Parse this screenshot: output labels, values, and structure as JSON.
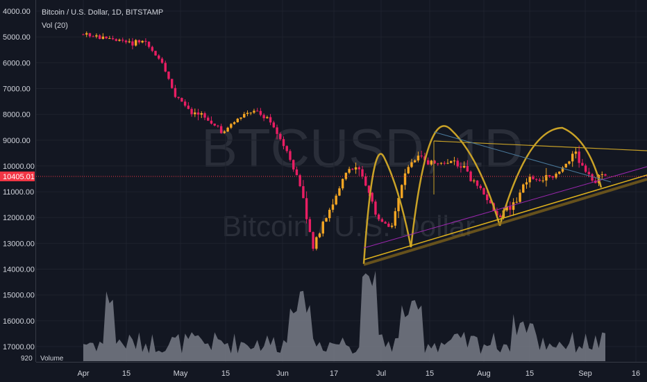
{
  "header": {
    "symbol_line": "Bitcoin / U.S. Dollar, 1D, BITSTAMP",
    "volume_line": "Vol (20)"
  },
  "watermark": {
    "ticker": "BTCUSD, 1D",
    "name": "Bitcoin / U.S. Dollar"
  },
  "price_badge": {
    "value": "10405.01",
    "color": "#f23645"
  },
  "volume_badge": {
    "value": "920",
    "label": "Volume"
  },
  "colors": {
    "up": "#f5a623",
    "down": "#e91e63",
    "volume": "#787b86",
    "pattern": "#c9a227"
  },
  "chart_data": {
    "type": "candlestick",
    "title": "Bitcoin / U.S. Dollar, 1D, BITSTAMP",
    "y_axis": {
      "inverted": true,
      "ylim": [
        4000,
        17200
      ],
      "ticks": [
        "4000.00",
        "5000.00",
        "6000.00",
        "7000.00",
        "8000.00",
        "9000.00",
        "10000.00",
        "11000.00",
        "12000.00",
        "13000.00",
        "14000.00",
        "15000.00",
        "16000.00",
        "17000.00"
      ]
    },
    "x_axis": {
      "ticks": [
        "Apr",
        "15",
        "May",
        "15",
        "Jun",
        "17",
        "Jul",
        "15",
        "Aug",
        "15",
        "Sep",
        "16"
      ]
    },
    "current_price": 10405.01,
    "price_path": [
      [
        "Apr",
        4900
      ],
      [
        "Apr 7",
        5000
      ],
      [
        "Apr 15",
        5100
      ],
      [
        "Apr 25",
        5250
      ],
      [
        "May",
        5150
      ],
      [
        "May 8",
        5900
      ],
      [
        "May 13",
        7300
      ],
      [
        "May 17",
        7900
      ],
      [
        "May 22",
        8100
      ],
      [
        "May 28",
        8700
      ],
      [
        "Jun",
        8200
      ],
      [
        "Jun 8",
        7800
      ],
      [
        "Jun 12",
        8100
      ],
      [
        "Jun 17",
        9200
      ],
      [
        "Jun 22",
        10500
      ],
      [
        "Jun 26",
        13200
      ],
      [
        "Jun 28",
        11800
      ],
      [
        "Jul",
        10300
      ],
      [
        "Jul 3",
        10000
      ],
      [
        "Jul 8",
        11800
      ],
      [
        "Jul 11",
        12700
      ],
      [
        "Jul 15",
        10100
      ],
      [
        "Jul 18",
        9600
      ],
      [
        "Jul 22",
        10000
      ],
      [
        "Jul 26",
        9800
      ],
      [
        "Jul 30",
        10300
      ],
      [
        "Aug",
        11000
      ],
      [
        "Aug 6",
        12000
      ],
      [
        "Aug 10",
        11500
      ],
      [
        "Aug 15",
        10400
      ],
      [
        "Aug 20",
        10600
      ],
      [
        "Aug 25",
        10200
      ],
      [
        "Aug 29",
        9500
      ],
      [
        "Sep",
        10600
      ],
      [
        "Sep 5",
        10400
      ]
    ],
    "pattern_annotations": [
      "head-and-shoulders arcs",
      "ascending support lines",
      "descending resistance line"
    ],
    "volume_series": "Vol (20)"
  }
}
